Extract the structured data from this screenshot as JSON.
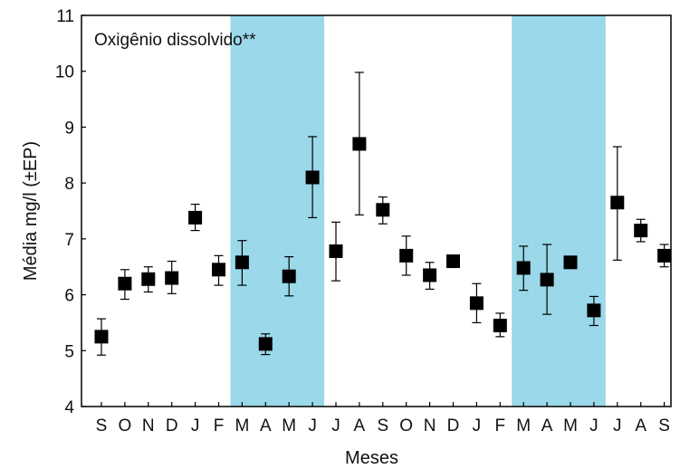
{
  "chart_data": {
    "type": "scatter",
    "annotation": "Oxigênio dissolvido**",
    "xlabel": "Meses",
    "ylabel": "Média mg/l (±EP)",
    "ylim": [
      4,
      11
    ],
    "yticks": [
      "4",
      "5",
      "6",
      "7",
      "8",
      "9",
      "10",
      "11"
    ],
    "categories": [
      "S",
      "O",
      "N",
      "D",
      "J",
      "F",
      "M",
      "A",
      "M",
      "J",
      "J",
      "A",
      "S",
      "O",
      "N",
      "D",
      "J",
      "F",
      "M",
      "A",
      "M",
      "J",
      "J",
      "A",
      "S"
    ],
    "values": [
      5.25,
      6.2,
      6.28,
      6.3,
      7.38,
      6.45,
      6.58,
      5.12,
      6.33,
      8.1,
      6.78,
      8.7,
      7.52,
      6.7,
      6.35,
      6.6,
      5.85,
      5.45,
      6.48,
      6.27,
      6.58,
      5.72,
      7.65,
      7.15,
      6.7
    ],
    "error_low": [
      4.92,
      5.92,
      6.05,
      6.02,
      7.15,
      6.17,
      6.17,
      4.93,
      5.98,
      7.38,
      6.25,
      7.43,
      7.27,
      6.35,
      6.1,
      6.6,
      5.5,
      5.25,
      6.08,
      5.65,
      6.58,
      5.45,
      6.62,
      6.95,
      6.5
    ],
    "error_high": [
      5.57,
      6.45,
      6.5,
      6.6,
      7.62,
      6.7,
      6.97,
      5.3,
      6.68,
      8.83,
      7.3,
      9.98,
      7.75,
      7.05,
      6.58,
      6.6,
      6.2,
      5.67,
      6.87,
      6.9,
      6.58,
      5.97,
      8.65,
      7.35,
      6.9
    ],
    "shaded_ranges": [
      {
        "from": "M",
        "to": "J",
        "start_index": 6,
        "end_index": 9
      },
      {
        "from": "M",
        "to": "J",
        "start_index": 18,
        "end_index": 21
      }
    ],
    "colors": {
      "shade": "#9ad8ea",
      "marker": "#000000",
      "axis": "#000000"
    },
    "grid": false,
    "legend": "none"
  }
}
